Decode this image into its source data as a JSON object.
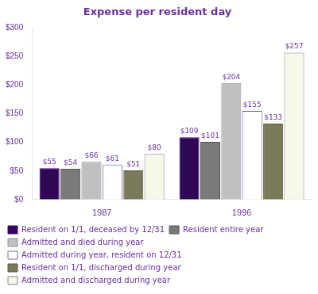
{
  "chart_data": {
    "type": "bar",
    "title": "Expense per resident day",
    "categories": [
      "1987",
      "1996"
    ],
    "series": [
      {
        "name": "Resident on 1/1, deceased by 12/31",
        "color": "#2E0854",
        "values": [
          55,
          109
        ],
        "value_labels": [
          "$55",
          "$109"
        ]
      },
      {
        "name": "Resident entire year",
        "color": "#7A7A7A",
        "values": [
          54,
          101
        ],
        "value_labels": [
          "$54",
          "$101"
        ]
      },
      {
        "name": "Admitted and died during year",
        "color": "#C0C0C0",
        "values": [
          66,
          204
        ],
        "value_labels": [
          "$66",
          "$204"
        ]
      },
      {
        "name": "Admitted during year, resident on 12/31",
        "color": "#FFFFFF",
        "values": [
          61,
          155
        ],
        "value_labels": [
          "$61",
          "$155"
        ]
      },
      {
        "name": "Resident on 1/1, discharged during year",
        "color": "#7A7A5A",
        "values": [
          51,
          133
        ],
        "value_labels": [
          "$51",
          "$133"
        ]
      },
      {
        "name": "Admitted and discharged during year",
        "color": "#F8F8E8",
        "values": [
          80,
          257
        ],
        "value_labels": [
          "$80",
          "$257"
        ]
      }
    ],
    "ylim": [
      0,
      300
    ],
    "yticks": [
      {
        "value": 0,
        "label": "$0"
      },
      {
        "value": 50,
        "label": "$50"
      },
      {
        "value": 100,
        "label": "$100"
      },
      {
        "value": 150,
        "label": "$150"
      },
      {
        "value": 200,
        "label": "$200"
      },
      {
        "value": 250,
        "label": "$250"
      },
      {
        "value": 300,
        "label": "$300"
      }
    ],
    "grid": false,
    "legend": "bottom",
    "data_labels": true
  }
}
